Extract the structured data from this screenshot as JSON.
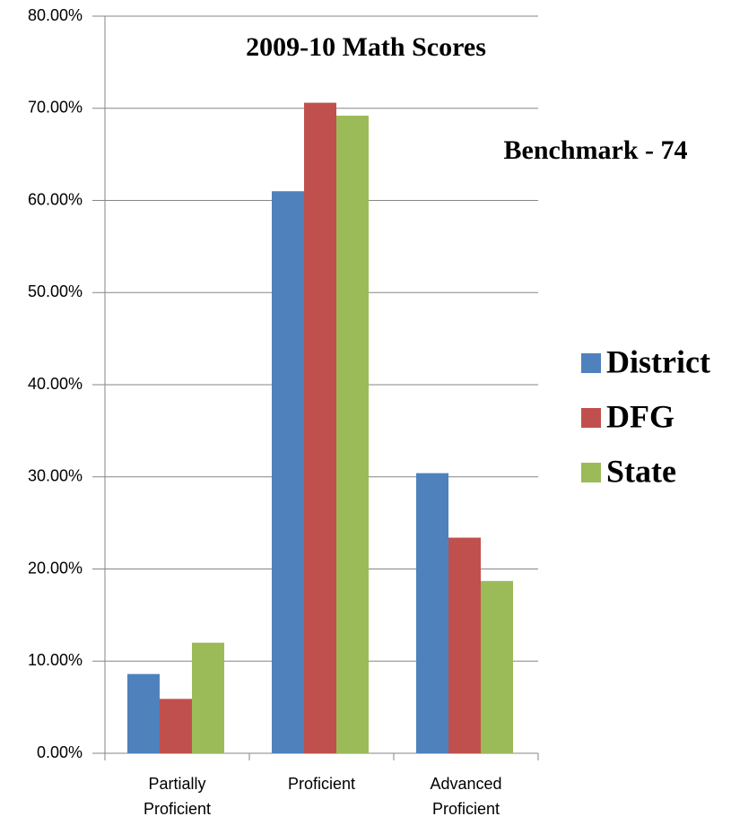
{
  "chart_data": {
    "type": "bar",
    "title": "2009-10 Math Scores",
    "annotation": "Benchmark - 74",
    "categories": [
      "Partially Proficient",
      "Proficient",
      "Advanced Proficient"
    ],
    "series": [
      {
        "name": "District",
        "color": "#4f81bd",
        "values": [
          8.6,
          61.0,
          30.4
        ]
      },
      {
        "name": "DFG",
        "color": "#c0504d",
        "values": [
          5.9,
          70.6,
          23.4
        ]
      },
      {
        "name": "State",
        "color": "#9bbb59",
        "values": [
          12.0,
          69.2,
          18.7
        ]
      }
    ],
    "ylim": [
      0,
      80
    ],
    "yticks": [
      {
        "value": 0,
        "label": "0.00%"
      },
      {
        "value": 10,
        "label": "10.00%"
      },
      {
        "value": 20,
        "label": "20.00%"
      },
      {
        "value": 30,
        "label": "30.00%"
      },
      {
        "value": 40,
        "label": "40.00%"
      },
      {
        "value": 50,
        "label": "50.00%"
      },
      {
        "value": 60,
        "label": "60.00%"
      },
      {
        "value": 70,
        "label": "70.00%"
      },
      {
        "value": 80,
        "label": "80.00%"
      }
    ],
    "grid": true,
    "legend": "right"
  }
}
